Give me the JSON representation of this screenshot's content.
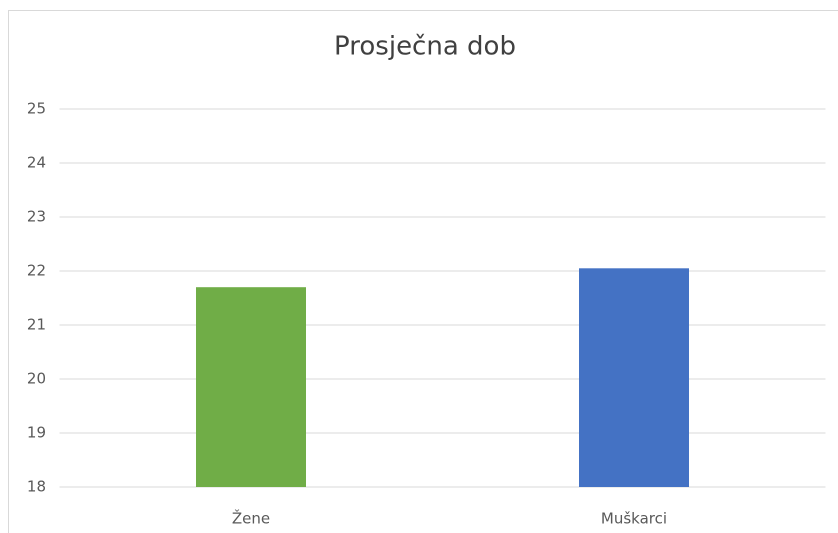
{
  "chart_data": {
    "type": "bar",
    "title": "Prosječna dob",
    "categories": [
      "Žene",
      "Muškarci"
    ],
    "values": [
      21.7,
      22.05
    ],
    "colors": [
      "#70ad47",
      "#4472c4"
    ],
    "ylim": [
      18,
      25
    ],
    "yticks": [
      18,
      19,
      20,
      21,
      22,
      23,
      24,
      25
    ],
    "grid": true
  }
}
